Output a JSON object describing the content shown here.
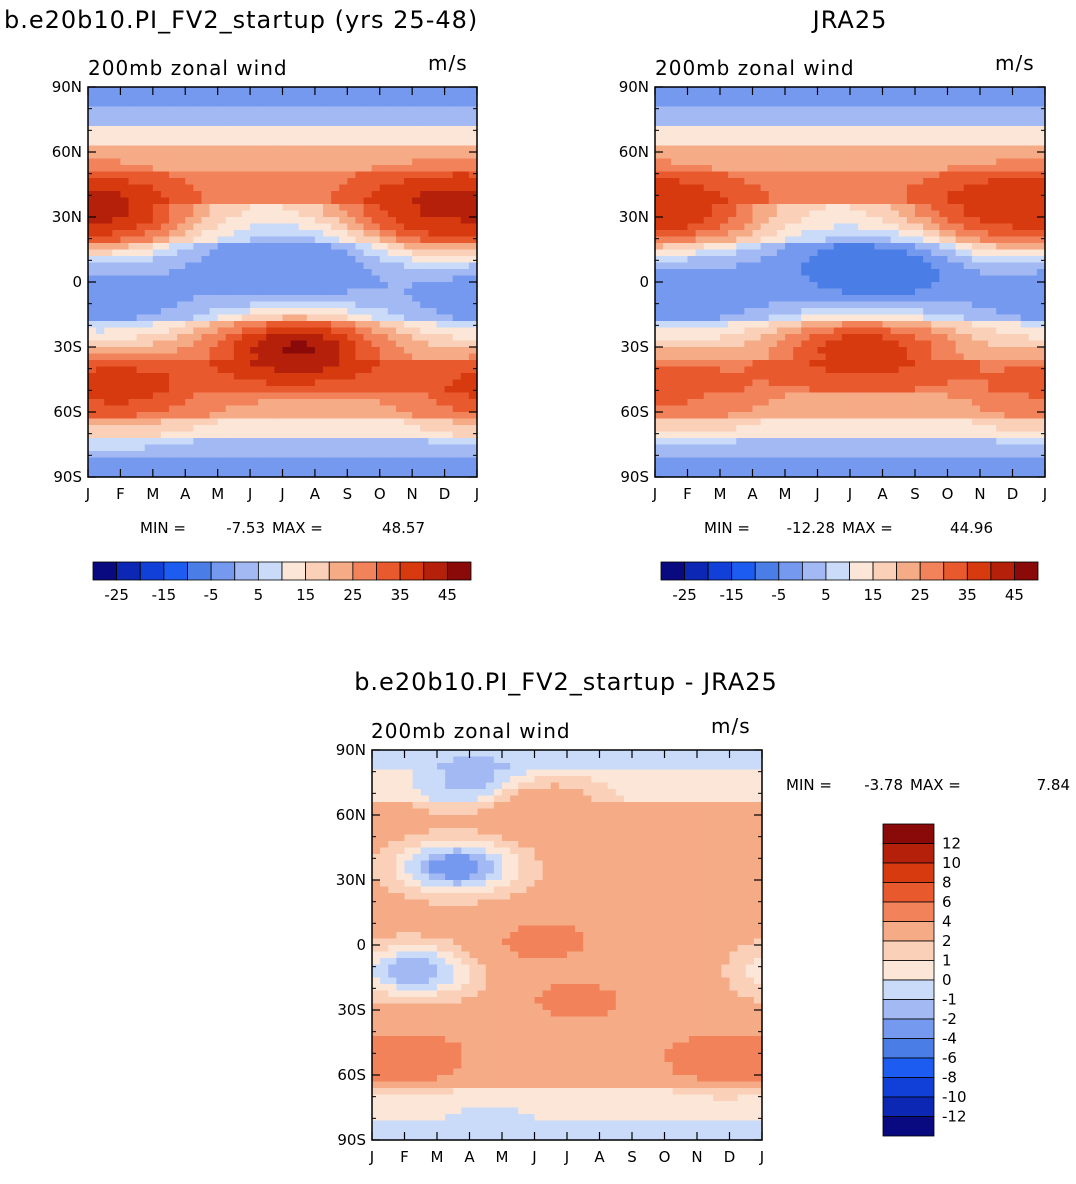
{
  "chart_data": [
    {
      "type": "heatmap",
      "title": "b.e20b10.PI_FV2_startup (yrs 25-48)",
      "subtitle_left": "200mb zonal wind",
      "subtitle_right": "m/s",
      "months": [
        "J",
        "F",
        "M",
        "A",
        "M",
        "J",
        "J",
        "A",
        "S",
        "O",
        "N",
        "D",
        "J"
      ],
      "lat_labels": [
        "90N",
        "60N",
        "30N",
        "0",
        "30S",
        "60S",
        "90S"
      ],
      "lat_values": [
        90,
        60,
        30,
        0,
        -30,
        -60,
        -90
      ],
      "ylim": [
        -90,
        90
      ],
      "min_label": "MIN =",
      "min_value": "-7.53",
      "max_label": "MAX =",
      "max_value": "48.57",
      "colorbar_ticks": [
        "-25",
        "-15",
        "-5",
        "5",
        "15",
        "25",
        "35",
        "45"
      ],
      "features": [
        {
          "month": 1,
          "lat": 30,
          "value": 45
        },
        {
          "month": 11.8,
          "lat": 30,
          "value": 42
        },
        {
          "month": 7.4,
          "lat": -30,
          "value": 47
        },
        {
          "month": 1.8,
          "lat": -48,
          "value": 38
        },
        {
          "month": 7.2,
          "lat": 7,
          "value": -5
        },
        {
          "month": 1.5,
          "lat": -5,
          "value": -2
        }
      ],
      "grid": false,
      "legend": "colorbar-bottom"
    },
    {
      "type": "heatmap",
      "title": "JRA25",
      "subtitle_left": "200mb zonal wind",
      "subtitle_right": "m/s",
      "months": [
        "J",
        "F",
        "M",
        "A",
        "M",
        "J",
        "J",
        "A",
        "S",
        "O",
        "N",
        "D",
        "J"
      ],
      "lat_labels": [
        "90N",
        "60N",
        "30N",
        "0",
        "30S",
        "60S",
        "90S"
      ],
      "lat_values": [
        90,
        60,
        30,
        0,
        -30,
        -60,
        -90
      ],
      "ylim": [
        -90,
        90
      ],
      "min_label": "MIN =",
      "min_value": "-12.28",
      "max_label": "MAX =",
      "max_value": "44.96",
      "colorbar_ticks": [
        "-25",
        "-15",
        "-5",
        "5",
        "15",
        "25",
        "35",
        "45"
      ],
      "features": [
        {
          "month": 1,
          "lat": 30,
          "value": 42
        },
        {
          "month": 11.8,
          "lat": 30,
          "value": 40
        },
        {
          "month": 7.4,
          "lat": -30,
          "value": 41
        },
        {
          "month": 1.5,
          "lat": -48,
          "value": 32
        },
        {
          "month": 7.8,
          "lat": 5,
          "value": -10
        },
        {
          "month": 2,
          "lat": -3,
          "value": -3
        }
      ],
      "grid": false,
      "legend": "colorbar-bottom"
    },
    {
      "type": "heatmap",
      "title": "b.e20b10.PI_FV2_startup - JRA25",
      "subtitle_left": "200mb zonal wind",
      "subtitle_right": "m/s",
      "months": [
        "J",
        "F",
        "M",
        "A",
        "M",
        "J",
        "J",
        "A",
        "S",
        "O",
        "N",
        "D",
        "J"
      ],
      "lat_labels": [
        "90N",
        "60N",
        "30N",
        "0",
        "30S",
        "60S",
        "90S"
      ],
      "lat_values": [
        90,
        60,
        30,
        0,
        -30,
        -60,
        -90
      ],
      "ylim": [
        -90,
        90
      ],
      "min_label": "MIN =",
      "min_value": "-3.78",
      "max_label": "MAX =",
      "max_value": "7.84",
      "colorbar_ticks": [
        "12",
        "10",
        "8",
        "6",
        "4",
        "2",
        "1",
        "0",
        "-1",
        "-2",
        "-4",
        "-6",
        "-8",
        "-10",
        "-12"
      ],
      "features": [
        {
          "month": 4.3,
          "lat": 75,
          "value": -2
        },
        {
          "month": 3.6,
          "lat": 36,
          "value": -3
        },
        {
          "month": 2.3,
          "lat": -12,
          "value": -2
        },
        {
          "month": 6.3,
          "lat": 2,
          "value": 5
        },
        {
          "month": 7.3,
          "lat": -26,
          "value": 5
        },
        {
          "month": 2.3,
          "lat": -52,
          "value": 6
        },
        {
          "month": 11.6,
          "lat": -52,
          "value": 6
        },
        {
          "month": 4.7,
          "lat": -86,
          "value": -1
        },
        {
          "month": 6.3,
          "lat": 64,
          "value": 4
        }
      ],
      "grid": false,
      "legend": "colorbar-right"
    }
  ],
  "colors": {
    "full_scale": [
      "#0a0a80",
      "#0c27b4",
      "#1040d8",
      "#1c5cf0",
      "#4a7ee6",
      "#7599ee",
      "#a3b9f4",
      "#c9dbf8",
      "#fbe6d8",
      "#fad0b8",
      "#f6ab87",
      "#f2825a",
      "#e85a2e",
      "#d83a10",
      "#b4200a",
      "#8a0a0a"
    ],
    "diff_scale": [
      "#0a0a80",
      "#0c27b4",
      "#1040d8",
      "#1c5cf0",
      "#4a7ee6",
      "#7599ee",
      "#a3b9f4",
      "#c9dbf8",
      "#fbe6d8",
      "#fad0b8",
      "#f6ab87",
      "#f2825a",
      "#e85a2e",
      "#d83a10",
      "#b4200a",
      "#8a0a0a"
    ]
  }
}
